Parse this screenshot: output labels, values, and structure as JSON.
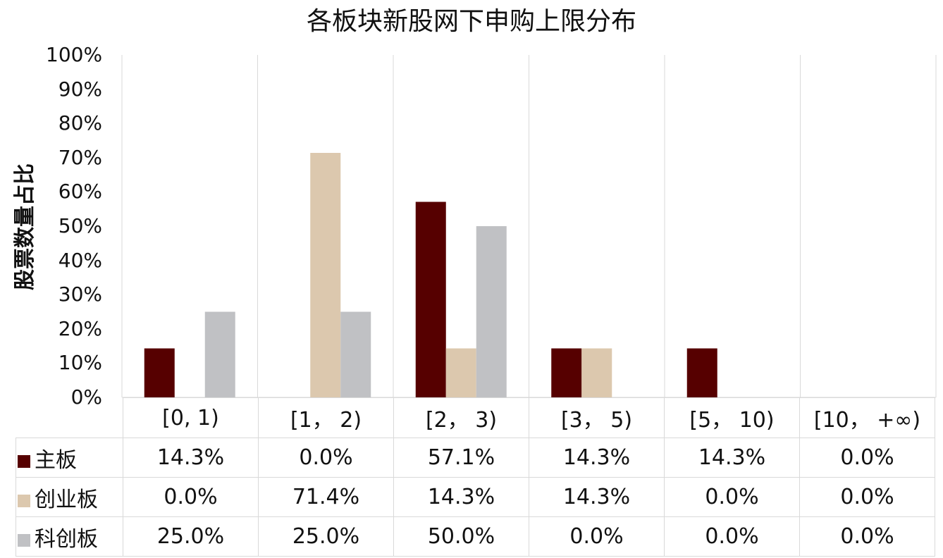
{
  "chart_data": {
    "type": "bar",
    "title": "各板块新股网下申购上限分布",
    "ylabel": "股票数量占比",
    "xlabel": "",
    "categories": [
      "[0, 1)",
      "[1， 2)",
      "[2， 3)",
      "[3， 5)",
      "[5， 10)",
      "[10， +∞)"
    ],
    "ylim": [
      0,
      100
    ],
    "yticks": [
      "0%",
      "10%",
      "20%",
      "30%",
      "40%",
      "50%",
      "60%",
      "70%",
      "80%",
      "90%",
      "100%"
    ],
    "grid": "vertical",
    "legend": "data-table",
    "series": [
      {
        "name": "主板",
        "color": "#560000",
        "values": [
          14.3,
          0.0,
          57.1,
          14.3,
          14.3,
          0.0
        ],
        "labels": [
          "14.3%",
          "0.0%",
          "57.1%",
          "14.3%",
          "14.3%",
          "0.0%"
        ]
      },
      {
        "name": "创业板",
        "color": "#dcc8ae",
        "values": [
          0.0,
          71.4,
          14.3,
          14.3,
          0.0,
          0.0
        ],
        "labels": [
          "0.0%",
          "71.4%",
          "14.3%",
          "14.3%",
          "0.0%",
          "0.0%"
        ]
      },
      {
        "name": "科创板",
        "color": "#c0c1c4",
        "values": [
          25.0,
          25.0,
          50.0,
          0.0,
          0.0,
          0.0
        ],
        "labels": [
          "25.0%",
          "25.0%",
          "50.0%",
          "0.0%",
          "0.0%",
          "0.0%"
        ]
      }
    ]
  }
}
